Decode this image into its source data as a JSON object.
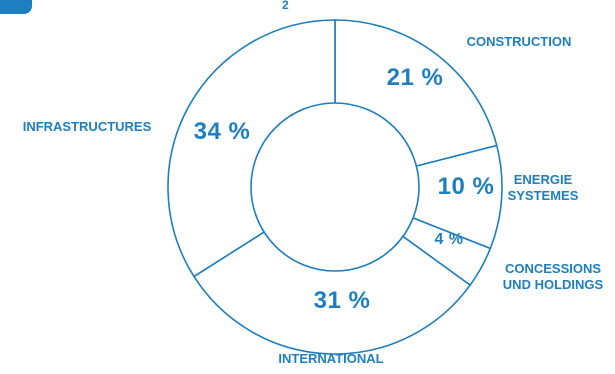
{
  "header": {
    "subscript": "2"
  },
  "colors": {
    "accent": "#1d7fbf",
    "background": "#ffffff"
  },
  "chart_data": {
    "type": "pie",
    "title": "",
    "donut": true,
    "slices": [
      {
        "key": "construction",
        "label": "CONSTRUCTION",
        "value": 21,
        "value_label": "21 %"
      },
      {
        "key": "energie-systemes",
        "label": "ENERGIE SYSTEMES",
        "value": 10,
        "value_label": "10 %"
      },
      {
        "key": "concessions-und-holdings",
        "label": "CONCESSIONS UND HOLDINGS",
        "value": 4,
        "value_label": "4 %"
      },
      {
        "key": "international",
        "label": "INTERNATIONAL",
        "value": 31,
        "value_label": "31 %"
      },
      {
        "key": "infrastructures",
        "label": "INFRASTRUCTURES",
        "value": 34,
        "value_label": "34 %"
      }
    ]
  }
}
